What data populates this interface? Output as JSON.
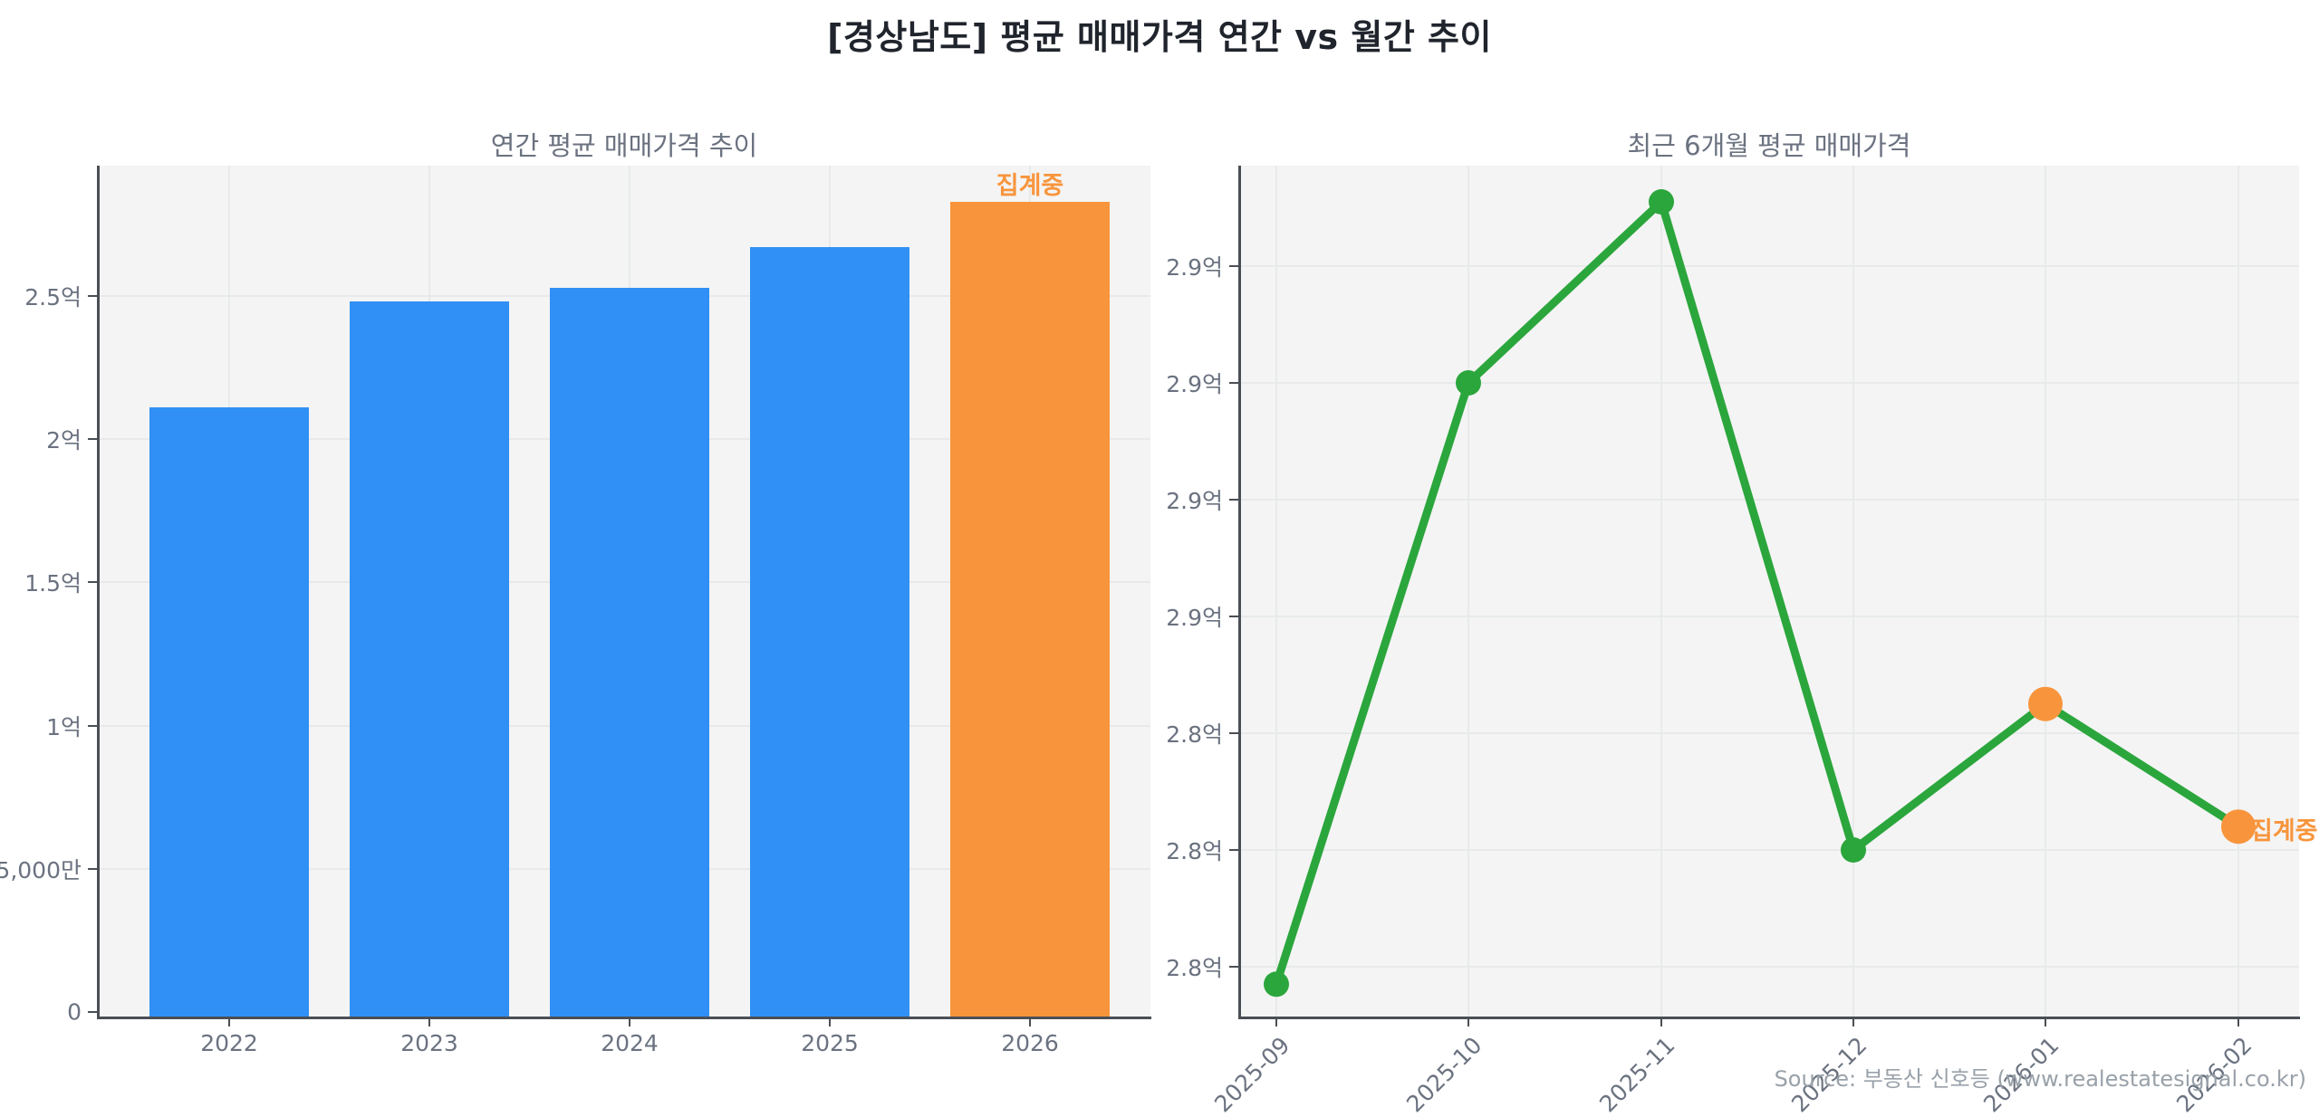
{
  "page_title": "[경상남도] 평균 매매가격 연간 vs 월간 추이",
  "source_note": "Source: 부동산 신호등 (www.realestatesignal.co.kr)",
  "colors": {
    "bar_blue": "#3090F5",
    "accent_orange": "#F8953C",
    "line_green": "#2BA63C",
    "plot_bg": "#F4F4F4",
    "grid_line": "#E8EAEA",
    "spine": "#4A4F55",
    "title_text": "#20242C",
    "axis_text": "#6B7280",
    "source_text": "#99A1A9"
  },
  "chart_data": [
    {
      "type": "bar",
      "title": "연간 평균 매매가격 추이",
      "unit": "억",
      "categories": [
        "2022",
        "2023",
        "2024",
        "2025",
        "2026"
      ],
      "values": [
        2.11,
        2.48,
        2.53,
        2.67,
        2.83
      ],
      "bar_color_keys": [
        "bar_blue",
        "bar_blue",
        "bar_blue",
        "bar_blue",
        "accent_orange"
      ],
      "yticks": [
        {
          "value": 0,
          "label": "0"
        },
        {
          "value": 0.5,
          "label": "5,000만"
        },
        {
          "value": 1,
          "label": "1억"
        },
        {
          "value": 1.5,
          "label": "1.5억"
        },
        {
          "value": 2,
          "label": "2억"
        },
        {
          "value": 2.5,
          "label": "2.5억"
        }
      ],
      "ylim": [
        0,
        2.97
      ],
      "grid": true,
      "legend": false,
      "annotation": {
        "text": "집계중",
        "category": "2026"
      }
    },
    {
      "type": "line",
      "title": "최근 6개월 평균 매매가격",
      "unit": "억",
      "categories": [
        "2025-09",
        "2025-10",
        "2025-11",
        "2025-12",
        "2026-01",
        "2026-02"
      ],
      "values": [
        2.797,
        2.9,
        2.931,
        2.82,
        2.845,
        2.824
      ],
      "point_color_keys": [
        "line_green",
        "line_green",
        "line_green",
        "line_green",
        "accent_orange",
        "accent_orange"
      ],
      "yticks": [
        {
          "value": 2.92,
          "label": "2.9억"
        },
        {
          "value": 2.9,
          "label": "2.9억"
        },
        {
          "value": 2.88,
          "label": "2.9억"
        },
        {
          "value": 2.86,
          "label": "2.9억"
        },
        {
          "value": 2.84,
          "label": "2.8억"
        },
        {
          "value": 2.82,
          "label": "2.8억"
        },
        {
          "value": 2.8,
          "label": "2.8억"
        }
      ],
      "ylim": [
        2.775,
        2.945
      ],
      "grid": true,
      "legend": false,
      "annotation": {
        "text": "집계중",
        "category": "2026-02"
      }
    }
  ]
}
